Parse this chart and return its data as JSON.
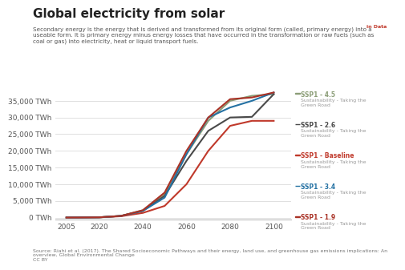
{
  "title": "Global electricity from solar",
  "subtitle": "Secondary energy is the energy that is derived and transformed from its original form (called, primary energy) into a\nuseable form. It is primary energy minus energy losses that have occurred in the transformation or raw fuels (such as\ncoal or gas) into electricity, heat or liquid transport fuels.",
  "ylabel": "",
  "xlabel": "",
  "source": "Source: Riahi et al. (2017). The Shared Socioeconomic Pathways and their energy, land use, and greenhouse gas emissions implications: An\noverview, Global Environmental Change\nCC BY",
  "yticks": [
    0,
    5000,
    10000,
    15000,
    20000,
    25000,
    30000,
    35000
  ],
  "ytick_labels": [
    "0 TWh",
    "5,000 TWh",
    "10,000 TWh",
    "15,000 TWh",
    "20,000 TWh",
    "25,000 TWh",
    "30,000 TWh",
    "35,000 TWh"
  ],
  "xticks": [
    2005,
    2020,
    2040,
    2060,
    2080,
    2100
  ],
  "xlim": [
    2000,
    2108
  ],
  "ylim": [
    -500,
    38000
  ],
  "background_color": "#ffffff",
  "plot_bg_color": "#ffffff",
  "grid_color": "#e0e0e0",
  "series": [
    {
      "name": "SSP1 - 4.5",
      "label1": "SSP1 - 4.5",
      "label2": "Sustainability - Taking the Green Road",
      "color": "#8b9d77",
      "lw": 1.5,
      "years": [
        2005,
        2010,
        2020,
        2030,
        2040,
        2050,
        2060,
        2070,
        2080,
        2090,
        2100
      ],
      "values": [
        3,
        20,
        80,
        500,
        2200,
        7000,
        19000,
        29000,
        35000,
        36500,
        37000
      ]
    },
    {
      "name": "SSP1 - 2.6",
      "label1": "SSP1 - 2.6",
      "label2": "Sustainability - Taking the Green Road",
      "color": "#4a4a4a",
      "lw": 1.5,
      "years": [
        2005,
        2010,
        2020,
        2030,
        2040,
        2050,
        2060,
        2070,
        2080,
        2090,
        2100
      ],
      "values": [
        3,
        20,
        80,
        500,
        2000,
        6500,
        17000,
        26000,
        30000,
        30200,
        37000
      ]
    },
    {
      "name": "SSP1 - Baseline",
      "label1": "SSP1 - Baseline",
      "label2": "Sustainability - Taking the Green Road",
      "color": "#c0392b",
      "lw": 1.5,
      "years": [
        2005,
        2010,
        2020,
        2030,
        2040,
        2050,
        2060,
        2070,
        2080,
        2090,
        2100
      ],
      "values": [
        3,
        20,
        80,
        400,
        1400,
        3500,
        10000,
        20000,
        27500,
        29000,
        29000
      ]
    },
    {
      "name": "SSP1 - 3.4",
      "label1": "SSP1 - 3.4",
      "label2": "Sustainability - Taking the Green Road",
      "color": "#2471a3",
      "lw": 1.5,
      "years": [
        2005,
        2010,
        2020,
        2030,
        2040,
        2050,
        2060,
        2070,
        2080,
        2090,
        2100
      ],
      "values": [
        3,
        20,
        80,
        500,
        2000,
        6000,
        19000,
        30000,
        33000,
        35000,
        37500
      ]
    },
    {
      "name": "SSP1 - 1.9",
      "label1": "SSP1 - 1.9",
      "label2": "Sustainability - Taking the Green Road",
      "color": "#a93226",
      "lw": 1.5,
      "years": [
        2005,
        2010,
        2020,
        2030,
        2040,
        2050,
        2060,
        2070,
        2080,
        2090,
        2100
      ],
      "values": [
        3,
        20,
        80,
        500,
        2200,
        7500,
        20000,
        30000,
        35500,
        36000,
        37500
      ]
    }
  ],
  "legend_label_colors": [
    "#8b9d77",
    "#4a4a4a",
    "#c0392b",
    "#2471a3",
    "#a93226"
  ],
  "owid_box_color": "#c0392b",
  "owid_box_bg": "#1a3a5c"
}
